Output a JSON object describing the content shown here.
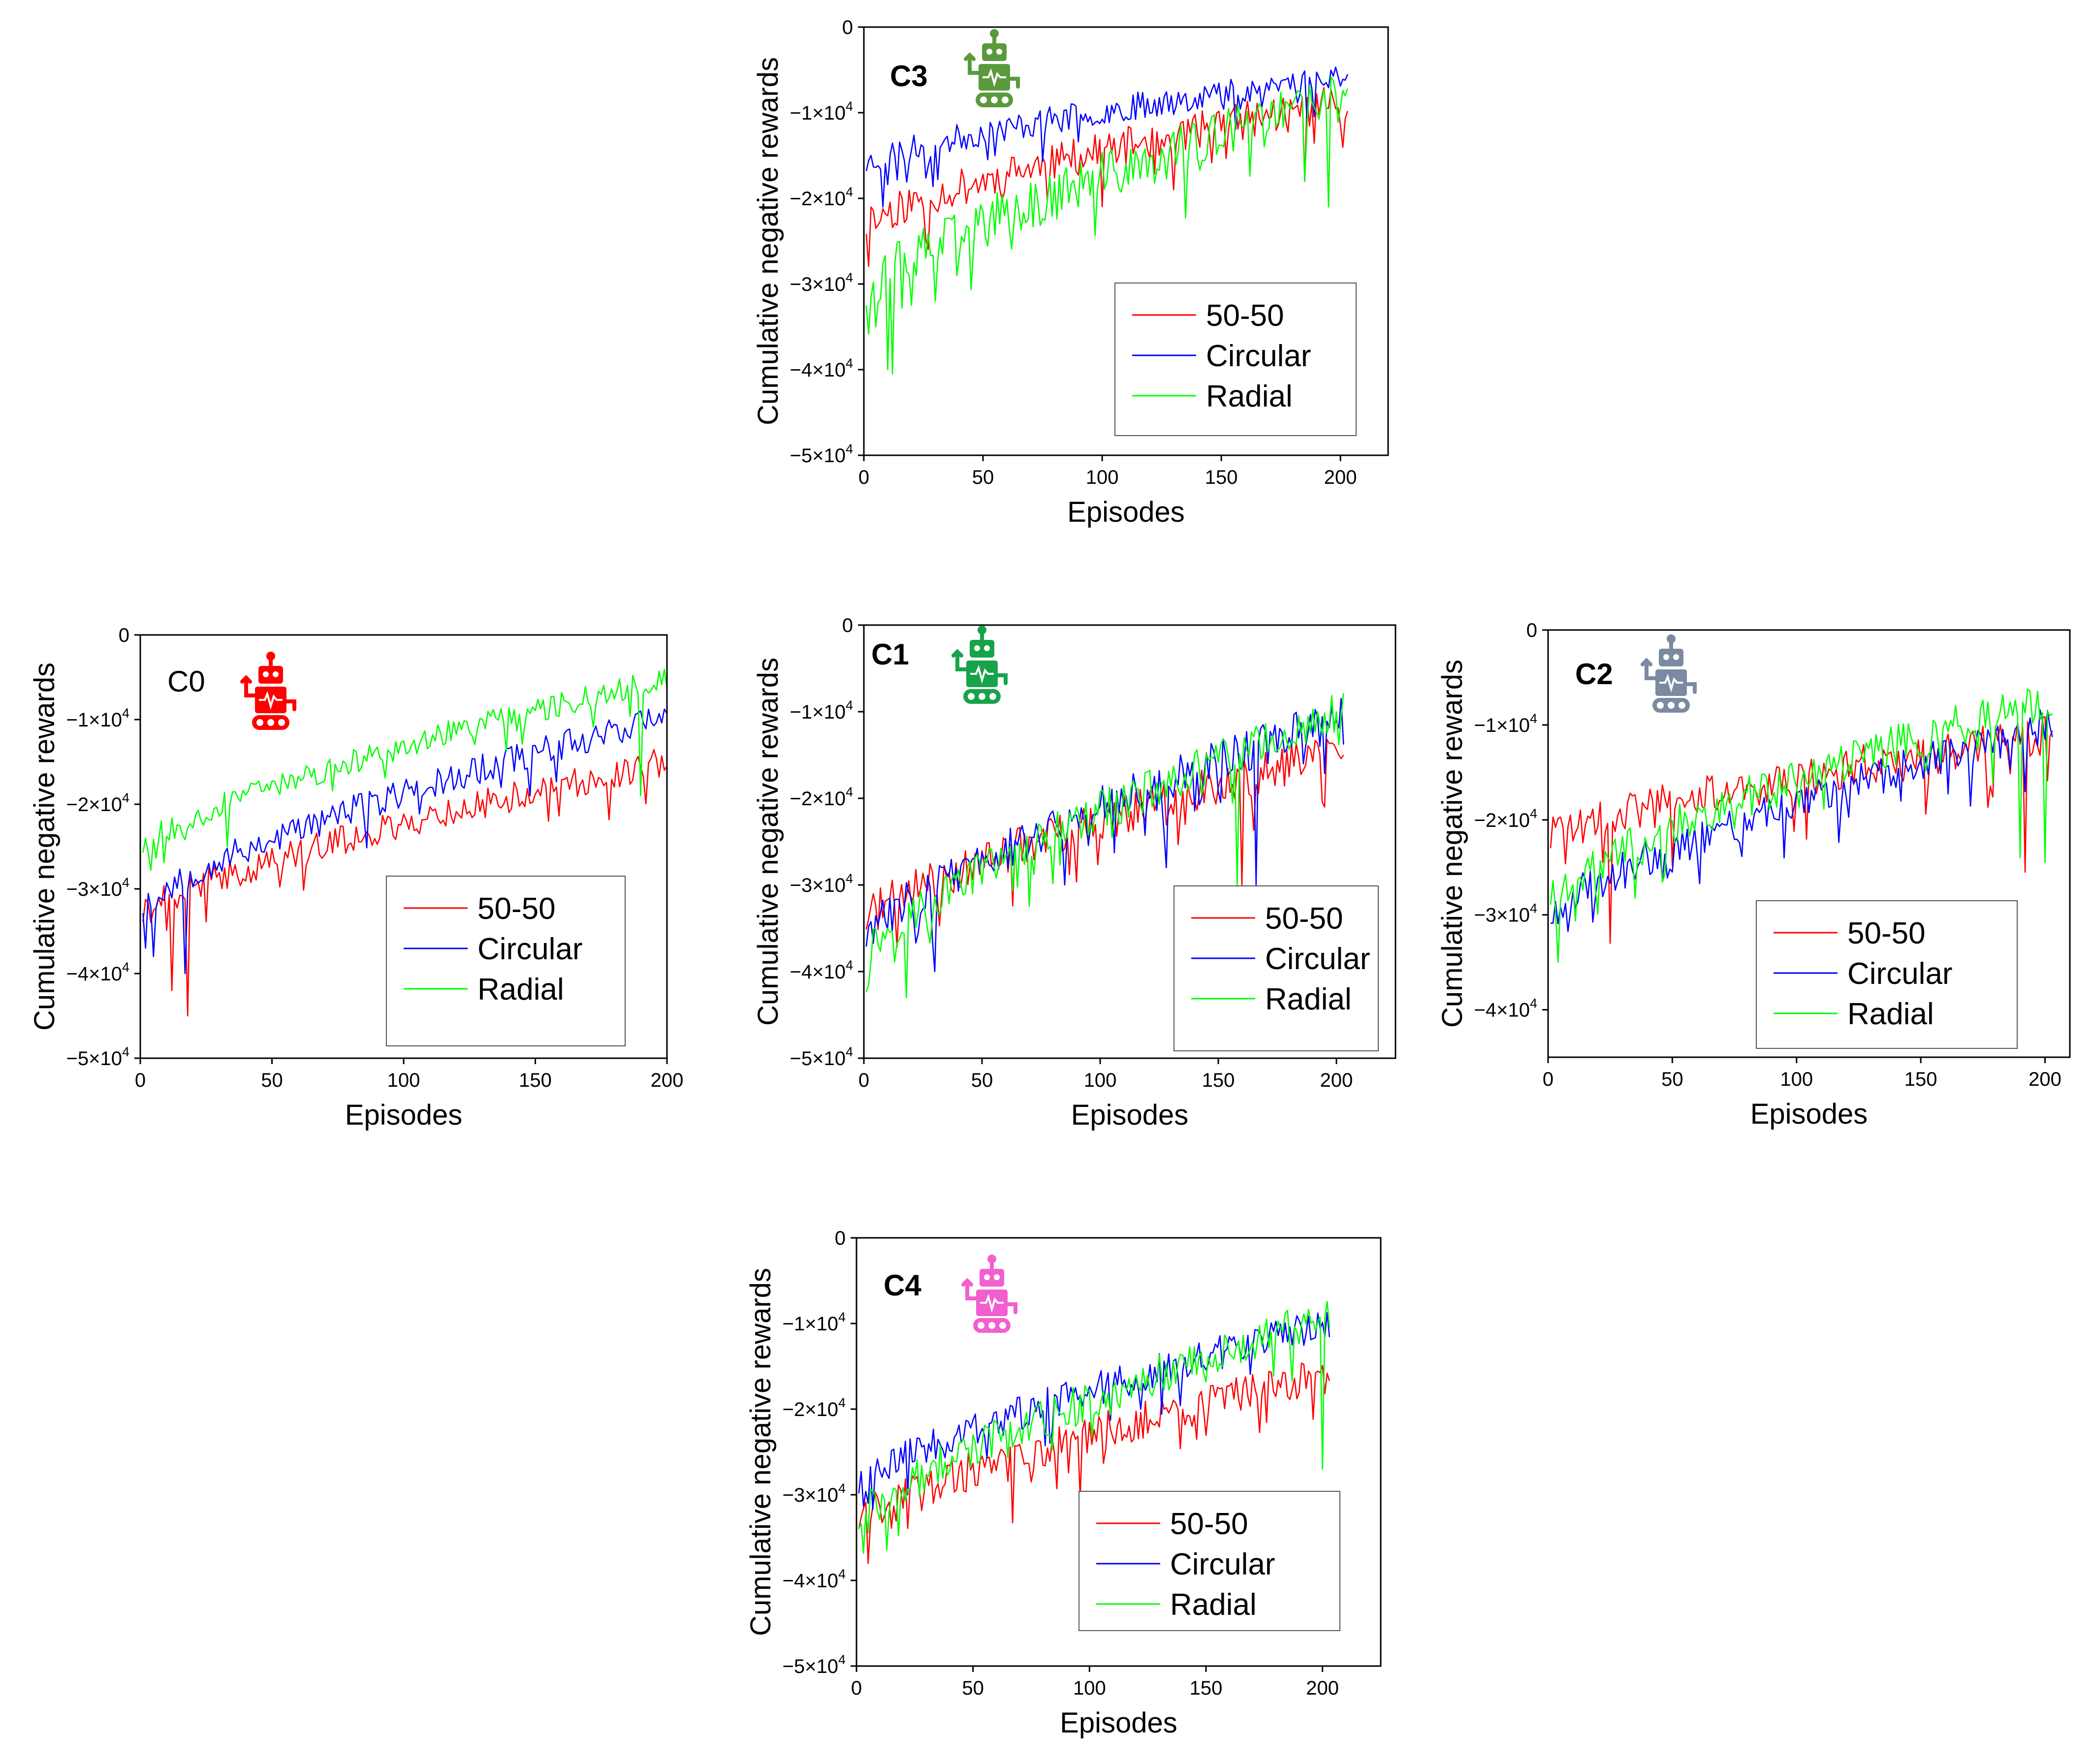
{
  "figure": {
    "description_title": ""
  },
  "colors": {
    "50-50": "#ff0000",
    "Circular": "#0000ff",
    "Radial": "#00ff00"
  },
  "chart_data": [
    {
      "id": "C3",
      "type": "line",
      "panel_label": "C3",
      "panel_label_bold": true,
      "robot_color": "#5b9a3c",
      "robot_icon": "robot-icon",
      "xlabel": "Episodes",
      "ylabel": "Cumulative negative rewards",
      "xlim": [
        0,
        220
      ],
      "ylim": [
        -50000,
        0
      ],
      "xticks": [
        0,
        50,
        100,
        150,
        200
      ],
      "yticks": [
        {
          "v": 0,
          "t": "0"
        },
        {
          "v": -10000,
          "t": "−1×10",
          "e": "4"
        },
        {
          "v": -20000,
          "t": "−2×10",
          "e": "4"
        },
        {
          "v": -30000,
          "t": "−3×10",
          "e": "4"
        },
        {
          "v": -40000,
          "t": "−4×10",
          "e": "4"
        },
        {
          "v": -50000,
          "t": "−5×10",
          "e": "4"
        }
      ],
      "legend": [
        "50-50",
        "Circular",
        "Radial"
      ],
      "series": [
        {
          "name": "50-50",
          "start": -23000,
          "end": -8500,
          "noise": 2200,
          "seed": 11,
          "spikes": [
            [
              130,
              -19000
            ],
            [
              185,
              -18000
            ]
          ]
        },
        {
          "name": "Circular",
          "start": -16000,
          "end": -5500,
          "noise": 1600,
          "seed": 23,
          "spikes": [
            [
              8,
              -21000
            ],
            [
              25,
              -14000
            ]
          ]
        },
        {
          "name": "Radial",
          "start": -31000,
          "end": -8000,
          "noise": 3000,
          "seed": 37,
          "spikes": [
            [
              5,
              -35000
            ],
            [
              10,
              -40000
            ],
            [
              12,
              -40500
            ],
            [
              30,
              -32000
            ],
            [
              185,
              -18000
            ],
            [
              195,
              -21000
            ]
          ]
        }
      ]
    },
    {
      "id": "C0",
      "type": "line",
      "panel_label": "C0",
      "panel_label_bold": false,
      "robot_color": "#ff0000",
      "robot_icon": "robot-icon",
      "xlabel": "Episodes",
      "ylabel": "Cumulative negative rewards",
      "xlim": [
        0,
        200
      ],
      "ylim": [
        -50000,
        0
      ],
      "xticks": [
        0,
        50,
        100,
        150,
        200
      ],
      "yticks": [
        {
          "v": 0,
          "t": "0"
        },
        {
          "v": -10000,
          "t": "−1×10",
          "e": "4"
        },
        {
          "v": -20000,
          "t": "−2×10",
          "e": "4"
        },
        {
          "v": -30000,
          "t": "−3×10",
          "e": "4"
        },
        {
          "v": -40000,
          "t": "−4×10",
          "e": "4"
        },
        {
          "v": -50000,
          "t": "−5×10",
          "e": "4"
        }
      ],
      "legend": [
        "50-50",
        "Circular",
        "Radial"
      ],
      "series": [
        {
          "name": "50-50",
          "start": -33000,
          "end": -15000,
          "noise": 1800,
          "seed": 41,
          "spikes": [
            [
              12,
              -42000
            ],
            [
              18,
              -45000
            ],
            [
              155,
              -22000
            ]
          ]
        },
        {
          "name": "Circular",
          "start": -32000,
          "end": -9500,
          "noise": 1800,
          "seed": 53,
          "spikes": [
            [
              2,
              -37000
            ],
            [
              5,
              -38000
            ],
            [
              17,
              -40000
            ]
          ]
        },
        {
          "name": "Radial",
          "start": -25000,
          "end": -5000,
          "noise": 1500,
          "seed": 67,
          "spikes": [
            [
              190,
              -19000
            ]
          ]
        }
      ]
    },
    {
      "id": "C1",
      "type": "line",
      "panel_label": "C1",
      "panel_label_bold": true,
      "robot_color": "#16a34a",
      "robot_icon": "robot-icon",
      "xlabel": "Episodes",
      "ylabel": "Cumulative negative rewards",
      "xlim": [
        0,
        225
      ],
      "ylim": [
        -50000,
        0
      ],
      "xticks": [
        0,
        50,
        100,
        150,
        200
      ],
      "yticks": [
        {
          "v": 0,
          "t": "0"
        },
        {
          "v": -10000,
          "t": "−1×10",
          "e": "4"
        },
        {
          "v": -20000,
          "t": "−2×10",
          "e": "4"
        },
        {
          "v": -30000,
          "t": "−3×10",
          "e": "4"
        },
        {
          "v": -40000,
          "t": "−4×10",
          "e": "4"
        },
        {
          "v": -50000,
          "t": "−5×10",
          "e": "4"
        }
      ],
      "legend": [
        "50-50",
        "Circular",
        "Radial"
      ],
      "series": [
        {
          "name": "50-50",
          "start": -34000,
          "end": -14500,
          "noise": 2400,
          "seed": 71,
          "spikes": [
            [
              160,
              -30000
            ],
            [
              195,
              -21000
            ]
          ]
        },
        {
          "name": "Circular",
          "start": -36000,
          "end": -10500,
          "noise": 2400,
          "seed": 83,
          "spikes": [
            [
              30,
              -40000
            ],
            [
              85,
              -30000
            ],
            [
              128,
              -28000
            ],
            [
              166,
              -30000
            ]
          ]
        },
        {
          "name": "Radial",
          "start": -38000,
          "end": -10000,
          "noise": 2400,
          "seed": 97,
          "spikes": [
            [
              18,
              -43000
            ],
            [
              158,
              -30000
            ]
          ]
        }
      ]
    },
    {
      "id": "C2",
      "type": "line",
      "panel_label": "C2",
      "panel_label_bold": true,
      "robot_color": "#7b8aa0",
      "robot_icon": "robot-icon",
      "xlabel": "Episodes",
      "ylabel": "Cumulative negative rewards",
      "xlim": [
        0,
        210
      ],
      "ylim": [
        -45000,
        0
      ],
      "xticks": [
        0,
        50,
        100,
        150,
        200
      ],
      "yticks": [
        {
          "v": 0,
          "t": "0"
        },
        {
          "v": -10000,
          "t": "−1×10",
          "e": "4"
        },
        {
          "v": -20000,
          "t": "−2×10",
          "e": "4"
        },
        {
          "v": -30000,
          "t": "−3×10",
          "e": "4"
        },
        {
          "v": -40000,
          "t": "−4×10",
          "e": "4"
        }
      ],
      "legend": [
        "50-50",
        "Circular",
        "Radial"
      ],
      "series": [
        {
          "name": "50-50",
          "start": -22000,
          "end": -11000,
          "noise": 2200,
          "seed": 101,
          "spikes": [
            [
              25,
              -33000
            ],
            [
              192,
              -25500
            ]
          ]
        },
        {
          "name": "Circular",
          "start": -30000,
          "end": -10000,
          "noise": 2000,
          "seed": 113,
          "spikes": [
            [
              95,
              -24000
            ]
          ]
        },
        {
          "name": "Radial",
          "start": -28000,
          "end": -7000,
          "noise": 2200,
          "seed": 127,
          "spikes": [
            [
              4,
              -35000
            ],
            [
              190,
              -24000
            ],
            [
              200,
              -24500
            ]
          ]
        }
      ]
    },
    {
      "id": "C4",
      "type": "line",
      "panel_label": "C4",
      "panel_label_bold": true,
      "robot_color": "#f25fd0",
      "robot_icon": "robot-icon",
      "xlabel": "Episodes",
      "ylabel": "Cumulative negative rewards",
      "xlim": [
        0,
        225
      ],
      "ylim": [
        -50000,
        0
      ],
      "xticks": [
        0,
        50,
        100,
        150,
        200
      ],
      "yticks": [
        {
          "v": 0,
          "t": "0"
        },
        {
          "v": -10000,
          "t": "−1×10",
          "e": "4"
        },
        {
          "v": -20000,
          "t": "−2×10",
          "e": "4"
        },
        {
          "v": -30000,
          "t": "−3×10",
          "e": "4"
        },
        {
          "v": -40000,
          "t": "−4×10",
          "e": "4"
        },
        {
          "v": -50000,
          "t": "−5×10",
          "e": "4"
        }
      ],
      "legend": [
        "50-50",
        "Circular",
        "Radial"
      ],
      "series": [
        {
          "name": "50-50",
          "start": -33000,
          "end": -16000,
          "noise": 2300,
          "seed": 131,
          "spikes": [
            [
              5,
              -38000
            ],
            [
              75,
              -28500
            ]
          ]
        },
        {
          "name": "Circular",
          "start": -29000,
          "end": -10000,
          "noise": 2000,
          "seed": 149,
          "spikes": [
            [
              5,
              -31000
            ]
          ]
        },
        {
          "name": "Radial",
          "start": -33000,
          "end": -9000,
          "noise": 2300,
          "seed": 157,
          "spikes": [
            [
              200,
              -27000
            ]
          ]
        }
      ]
    }
  ]
}
